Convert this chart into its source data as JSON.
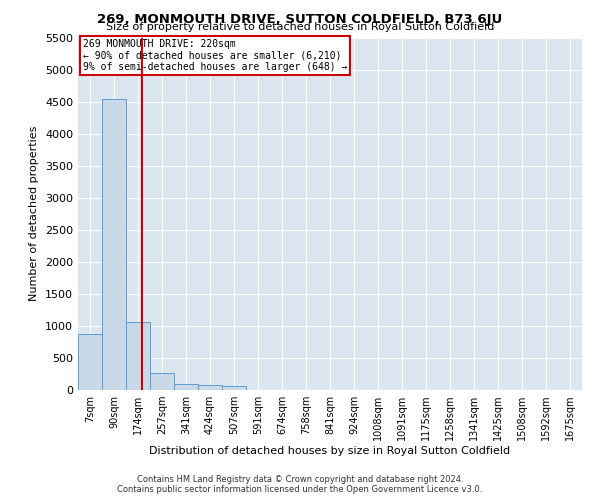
{
  "title": "269, MONMOUTH DRIVE, SUTTON COLDFIELD, B73 6JU",
  "subtitle": "Size of property relative to detached houses in Royal Sutton Coldfield",
  "xlabel": "Distribution of detached houses by size in Royal Sutton Coldfield",
  "ylabel": "Number of detached properties",
  "footnote1": "Contains HM Land Registry data © Crown copyright and database right 2024.",
  "footnote2": "Contains public sector information licensed under the Open Government Licence v3.0.",
  "annotation_title": "269 MONMOUTH DRIVE: 220sqm",
  "annotation_line2": "← 90% of detached houses are smaller (6,210)",
  "annotation_line3": "9% of semi-detached houses are larger (648) →",
  "bar_color": "#c9d9e8",
  "bar_edge_color": "#5b9bd5",
  "vline_color": "#cc0000",
  "annotation_box_color": "#cc0000",
  "bg_color": "#dce6f1",
  "categories": [
    "7sqm",
    "90sqm",
    "174sqm",
    "257sqm",
    "341sqm",
    "424sqm",
    "507sqm",
    "591sqm",
    "674sqm",
    "758sqm",
    "841sqm",
    "924sqm",
    "1008sqm",
    "1091sqm",
    "1175sqm",
    "1258sqm",
    "1341sqm",
    "1425sqm",
    "1508sqm",
    "1592sqm",
    "1675sqm"
  ],
  "values": [
    880,
    4540,
    1060,
    270,
    90,
    75,
    55,
    0,
    0,
    0,
    0,
    0,
    0,
    0,
    0,
    0,
    0,
    0,
    0,
    0,
    0
  ],
  "ylim": [
    0,
    5500
  ],
  "yticks": [
    0,
    500,
    1000,
    1500,
    2000,
    2500,
    3000,
    3500,
    4000,
    4500,
    5000,
    5500
  ],
  "vline_x_index": 2.18
}
